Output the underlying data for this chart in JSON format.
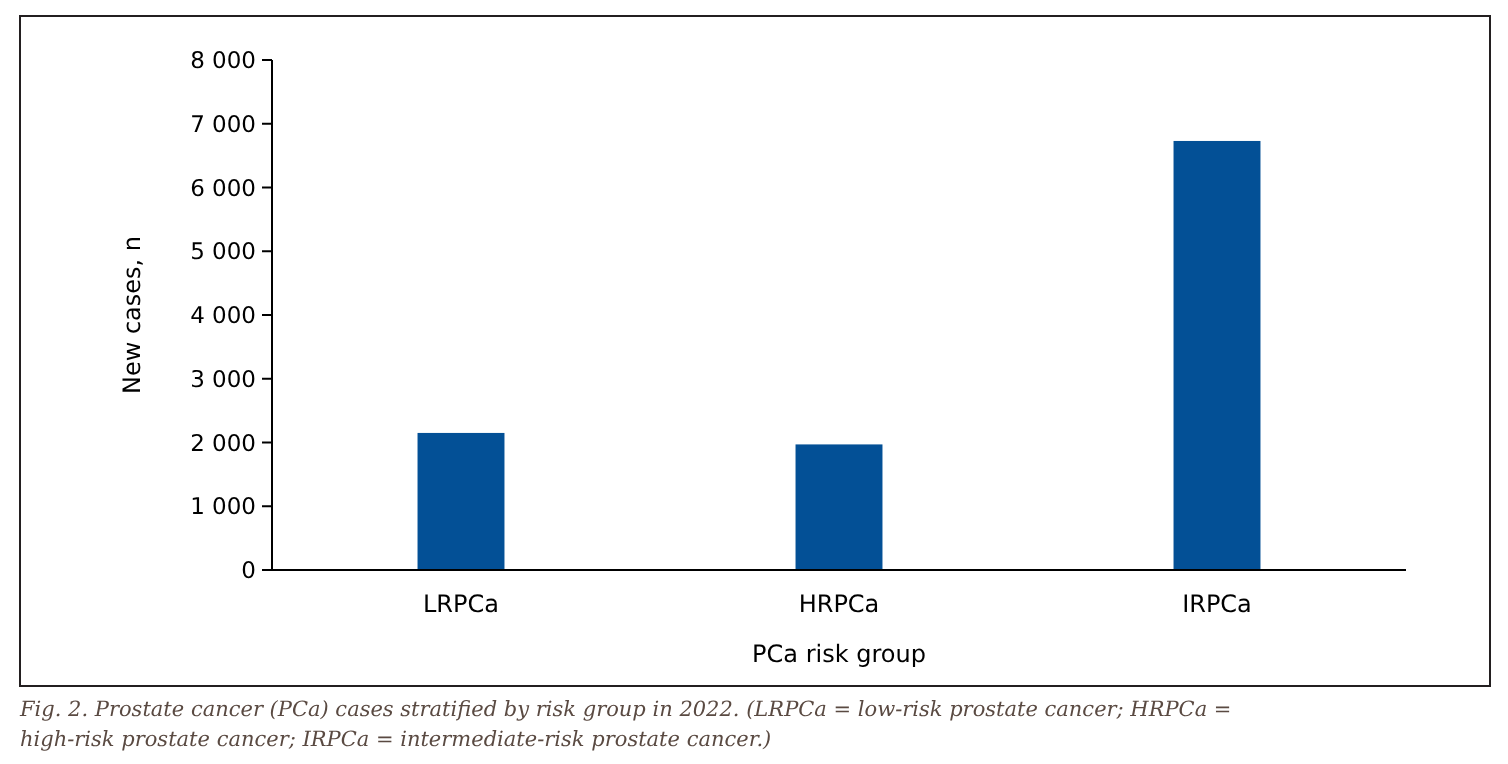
{
  "chart_data": {
    "type": "bar",
    "xlabel": "PCa risk group",
    "ylabel": "New cases, n",
    "categories": [
      "LRPCa",
      "HRPCa",
      "IRPCa"
    ],
    "values": [
      2150,
      1970,
      6730
    ],
    "color": "#035096",
    "ylim": [
      0,
      8000
    ],
    "yticks": [
      {
        "value": 0,
        "label": "0"
      },
      {
        "value": 1000,
        "label": "1 000"
      },
      {
        "value": 2000,
        "label": "2 000"
      },
      {
        "value": 3000,
        "label": "3 000"
      },
      {
        "value": 4000,
        "label": "4 000"
      },
      {
        "value": 5000,
        "label": "5 000"
      },
      {
        "value": 6000,
        "label": "6 000"
      },
      {
        "value": 7000,
        "label": "7 000"
      },
      {
        "value": 8000,
        "label": "8 000"
      }
    ],
    "annotations": [
      "Fig. 2. Prostate cancer (PCa) cases stratified by risk group in 2022. (LRPCa = low-risk prostate cancer; HRPCa = high-risk prostate cancer; IRPCa = intermediate-risk prostate cancer.)"
    ]
  }
}
